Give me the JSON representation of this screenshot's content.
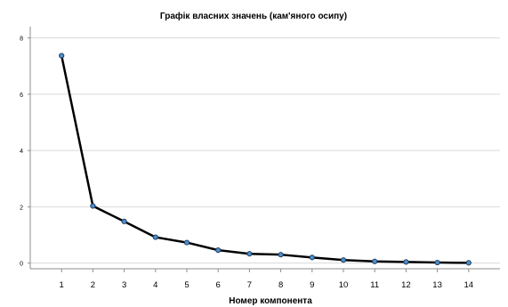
{
  "chart_data": {
    "type": "line",
    "title": "Графік власних значень (кам'яного осипу)",
    "xlabel": "Номер компонента",
    "ylabel": "",
    "x": [
      1,
      2,
      3,
      4,
      5,
      6,
      7,
      8,
      9,
      10,
      11,
      12,
      13,
      14
    ],
    "xticks": [
      "1",
      "2",
      "3",
      "4",
      "5",
      "6",
      "7",
      "8",
      "9",
      "10",
      "11",
      "12",
      "13",
      "14"
    ],
    "yticks": [
      "0",
      "2",
      "4",
      "6",
      "8"
    ],
    "yticks_values": [
      0,
      2,
      4,
      6,
      8
    ],
    "xlim": [
      0,
      15
    ],
    "ylim": [
      -0.2,
      8.4
    ],
    "grid": true,
    "series": [
      {
        "values": [
          7.37,
          2.03,
          1.48,
          0.92,
          0.73,
          0.46,
          0.33,
          0.3,
          0.2,
          0.11,
          0.06,
          0.04,
          0.02,
          0.01
        ]
      }
    ],
    "colors": {
      "line": "#000000",
      "marker_fill": "#4f8fc9",
      "marker_stroke": "#1f3f66"
    }
  }
}
